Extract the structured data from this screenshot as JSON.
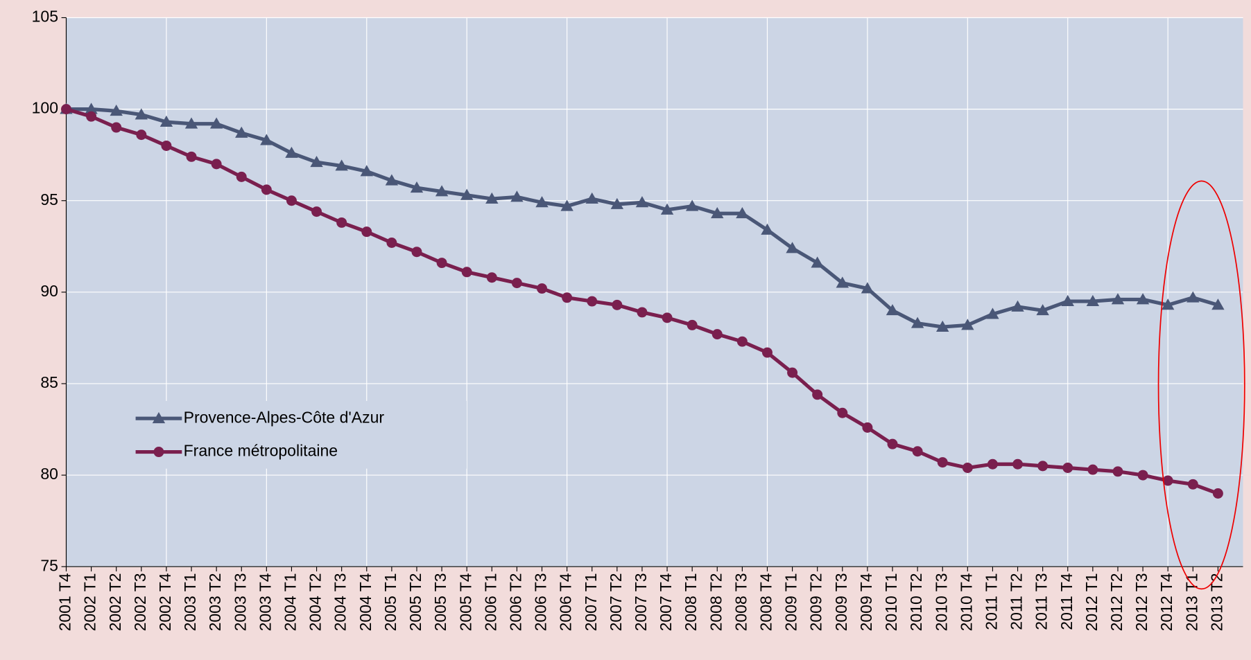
{
  "chart_data": {
    "type": "line",
    "categories": [
      "2001 T4",
      "2002 T1",
      "2002 T2",
      "2002 T3",
      "2002 T4",
      "2003 T1",
      "2003 T2",
      "2003 T3",
      "2003 T4",
      "2004 T1",
      "2004 T2",
      "2004 T3",
      "2004 T4",
      "2005 T1",
      "2005 T2",
      "2005 T3",
      "2005 T4",
      "2006 T1",
      "2006 T2",
      "2006 T3",
      "2006 T4",
      "2007 T1",
      "2007 T2",
      "2007 T3",
      "2007 T4",
      "2008 T1",
      "2008 T2",
      "2008 T3",
      "2008 T4",
      "2009 T1",
      "2009 T2",
      "2009 T3",
      "2009 T4",
      "2010 T1",
      "2010 T2",
      "2010 T3",
      "2010 T4",
      "2011 T1",
      "2011 T2",
      "2011 T3",
      "2011 T4",
      "2012 T1",
      "2012 T2",
      "2012 T3",
      "2012 T4",
      "2013 T1",
      "2013 T2"
    ],
    "series": [
      {
        "name": "Provence-Alpes-Côte d'Azur",
        "color": "#4a5777",
        "marker": "triangle",
        "values": [
          100,
          100,
          99.9,
          99.7,
          99.3,
          99.2,
          99.2,
          98.7,
          98.3,
          97.6,
          97.1,
          96.9,
          96.6,
          96.1,
          95.7,
          95.5,
          95.3,
          95.1,
          95.2,
          94.9,
          94.7,
          95.1,
          94.8,
          94.9,
          94.5,
          94.7,
          94.3,
          94.3,
          93.4,
          92.4,
          91.6,
          90.5,
          90.2,
          89.0,
          88.3,
          88.1,
          88.2,
          88.8,
          89.2,
          89.0,
          89.5,
          89.5,
          89.6,
          89.6,
          89.3,
          89.7,
          89.3
        ]
      },
      {
        "name": "France métropolitaine",
        "color": "#7a1f4e",
        "marker": "circle",
        "values": [
          100,
          99.6,
          99.0,
          98.6,
          98.0,
          97.4,
          97.0,
          96.3,
          95.6,
          95.0,
          94.4,
          93.8,
          93.3,
          92.7,
          92.2,
          91.6,
          91.1,
          90.8,
          90.5,
          90.2,
          89.7,
          89.5,
          89.3,
          88.9,
          88.6,
          88.2,
          87.7,
          87.3,
          86.7,
          85.6,
          84.4,
          83.4,
          82.6,
          81.7,
          81.3,
          80.7,
          80.4,
          80.6,
          80.6,
          80.5,
          80.4,
          80.3,
          80.2,
          80.0,
          79.7,
          79.5,
          79.0
        ]
      }
    ],
    "ylim": [
      75,
      105
    ],
    "yticks": [
      75,
      80,
      85,
      90,
      95,
      100,
      105
    ],
    "grid": true,
    "legend": "lower-left"
  }
}
